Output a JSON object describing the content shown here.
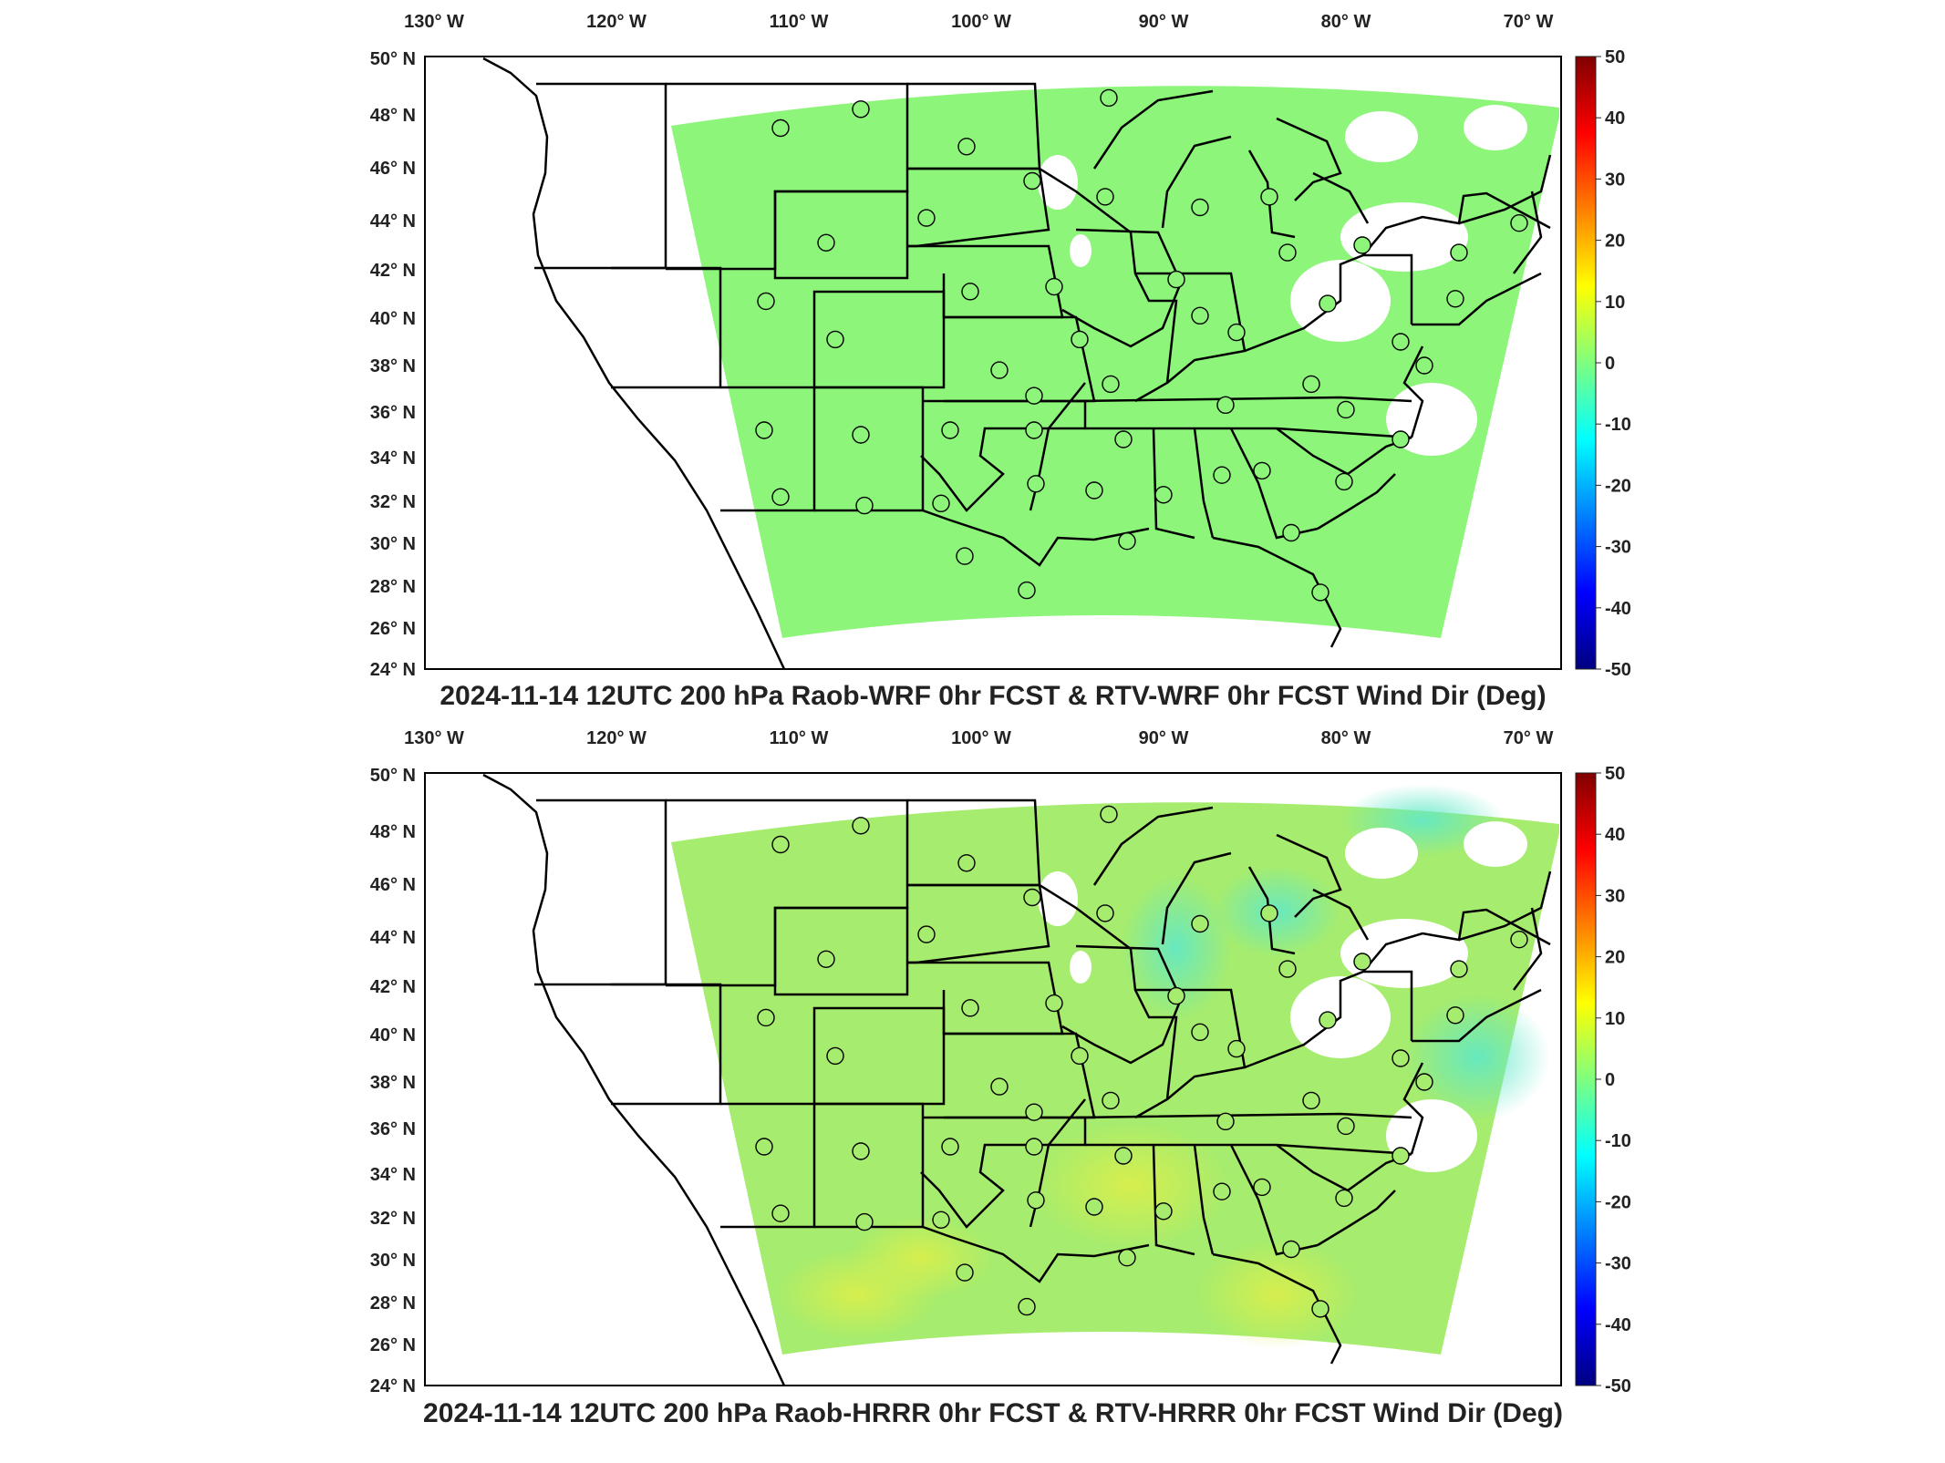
{
  "panels": [
    {
      "title": "2024-11-14 12UTC 200 hPa Raob-WRF 0hr FCST & RTV-WRF 0hr FCST Wind Dir (Deg)",
      "model": "WRF",
      "field_color": "#8cf57a",
      "lon_labels": [
        "130° W",
        "120° W",
        "110° W",
        "100° W",
        "90° W",
        "80° W",
        "70° W"
      ],
      "lat_labels": [
        "50° N",
        "48° N",
        "46° N",
        "44° N",
        "42° N",
        "40° N",
        "38° N",
        "36° N",
        "34° N",
        "32° N",
        "30° N",
        "28° N",
        "26° N",
        "24° N"
      ]
    },
    {
      "title": "2024-11-14 12UTC 200 hPa Raob-HRRR 0hr FCST & RTV-HRRR 0hr FCST Wind Dir (Deg)",
      "model": "HRRR",
      "field_color": "#a6ec6e",
      "lon_labels": [
        "130° W",
        "120° W",
        "110° W",
        "100° W",
        "90° W",
        "80° W",
        "70° W"
      ],
      "lat_labels": [
        "50° N",
        "48° N",
        "46° N",
        "44° N",
        "42° N",
        "40° N",
        "38° N",
        "36° N",
        "34° N",
        "32° N",
        "30° N",
        "28° N",
        "26° N",
        "24° N"
      ]
    }
  ],
  "colorbar": {
    "colormap": "jet",
    "min": -50,
    "max": 50,
    "tick_labels": [
      "50",
      "40",
      "30",
      "20",
      "10",
      "0",
      "-10",
      "-20",
      "-30",
      "-40",
      "-50"
    ]
  },
  "stations": [
    {
      "lon": -111.0,
      "lat": 47.5
    },
    {
      "lon": -106.6,
      "lat": 48.2
    },
    {
      "lon": -100.8,
      "lat": 46.8
    },
    {
      "lon": -97.2,
      "lat": 45.5
    },
    {
      "lon": -93.0,
      "lat": 48.6
    },
    {
      "lon": -93.2,
      "lat": 44.9
    },
    {
      "lon": -88.0,
      "lat": 44.5
    },
    {
      "lon": -84.2,
      "lat": 44.9
    },
    {
      "lon": -83.2,
      "lat": 42.7
    },
    {
      "lon": -79.1,
      "lat": 43.0
    },
    {
      "lon": -73.8,
      "lat": 42.7
    },
    {
      "lon": -70.5,
      "lat": 43.9
    },
    {
      "lon": -108.5,
      "lat": 43.1
    },
    {
      "lon": -103.0,
      "lat": 44.1
    },
    {
      "lon": -100.6,
      "lat": 41.1
    },
    {
      "lon": -96.0,
      "lat": 41.3
    },
    {
      "lon": -89.3,
      "lat": 41.6
    },
    {
      "lon": -88.0,
      "lat": 40.1
    },
    {
      "lon": -86.0,
      "lat": 39.4
    },
    {
      "lon": -81.0,
      "lat": 40.6
    },
    {
      "lon": -111.8,
      "lat": 40.7
    },
    {
      "lon": -108.0,
      "lat": 39.1
    },
    {
      "lon": -99.0,
      "lat": 37.8
    },
    {
      "lon": -94.6,
      "lat": 39.1
    },
    {
      "lon": -92.9,
      "lat": 37.2
    },
    {
      "lon": -97.1,
      "lat": 36.7
    },
    {
      "lon": -86.6,
      "lat": 36.3
    },
    {
      "lon": -81.9,
      "lat": 37.2
    },
    {
      "lon": -80.0,
      "lat": 36.1
    },
    {
      "lon": -77.0,
      "lat": 39.0
    },
    {
      "lon": -75.7,
      "lat": 38.0
    },
    {
      "lon": -74.0,
      "lat": 40.8
    },
    {
      "lon": -111.9,
      "lat": 35.2
    },
    {
      "lon": -106.6,
      "lat": 35.0
    },
    {
      "lon": -101.7,
      "lat": 35.2
    },
    {
      "lon": -97.1,
      "lat": 35.2
    },
    {
      "lon": -92.2,
      "lat": 34.8
    },
    {
      "lon": -86.8,
      "lat": 33.2
    },
    {
      "lon": -84.6,
      "lat": 33.4
    },
    {
      "lon": -111.0,
      "lat": 32.2
    },
    {
      "lon": -106.4,
      "lat": 31.8
    },
    {
      "lon": -102.2,
      "lat": 31.9
    },
    {
      "lon": -97.0,
      "lat": 32.8
    },
    {
      "lon": -93.8,
      "lat": 32.5
    },
    {
      "lon": -90.0,
      "lat": 32.3
    },
    {
      "lon": -92.0,
      "lat": 30.1
    },
    {
      "lon": -83.0,
      "lat": 30.5
    },
    {
      "lon": -80.1,
      "lat": 32.9
    },
    {
      "lon": -77.0,
      "lat": 34.8
    },
    {
      "lon": -100.9,
      "lat": 29.4
    },
    {
      "lon": -97.5,
      "lat": 27.8
    },
    {
      "lon": -81.4,
      "lat": 27.7
    }
  ]
}
